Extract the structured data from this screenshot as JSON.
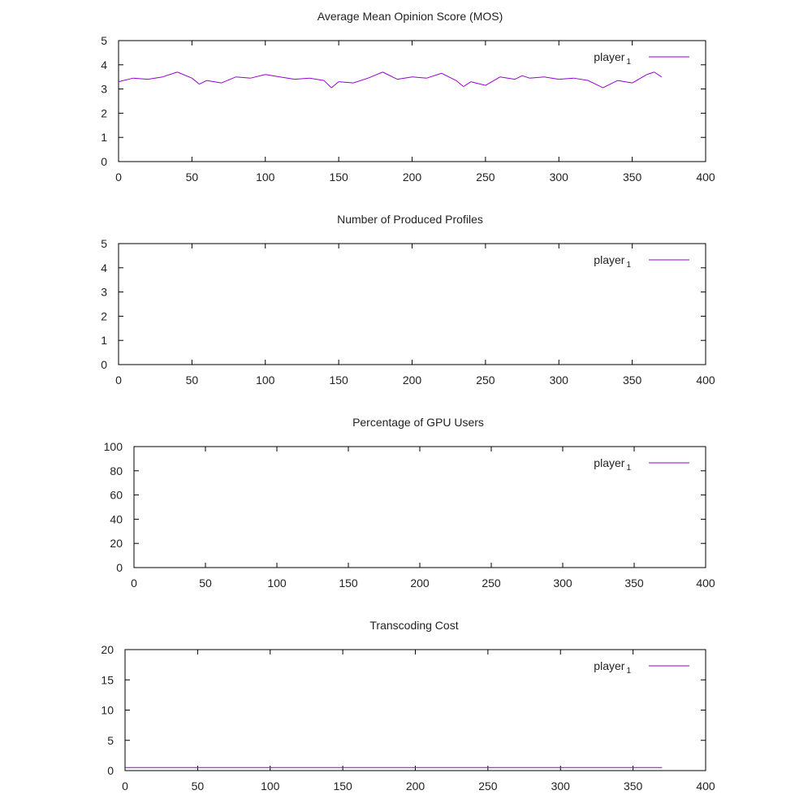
{
  "colors": {
    "series": "#9400d3",
    "axis": "#000000",
    "text": "#222222"
  },
  "chart_data": [
    {
      "type": "line",
      "title": "Average Mean Opinion Score (MOS)",
      "xlabel": "",
      "ylabel": "",
      "xlim": [
        0,
        400
      ],
      "ylim": [
        0,
        5
      ],
      "xticks": [
        0,
        50,
        100,
        150,
        200,
        250,
        300,
        350,
        400
      ],
      "yticks": [
        0,
        1,
        2,
        3,
        4,
        5
      ],
      "grid": false,
      "legend_position": "top-right",
      "series": [
        {
          "name": "player",
          "name_sub": "1",
          "x": [
            0,
            10,
            20,
            30,
            40,
            50,
            55,
            60,
            70,
            80,
            90,
            100,
            110,
            120,
            130,
            140,
            145,
            150,
            160,
            170,
            180,
            190,
            200,
            210,
            220,
            230,
            235,
            240,
            250,
            260,
            270,
            275,
            280,
            290,
            300,
            310,
            320,
            330,
            340,
            350,
            360,
            365,
            370
          ],
          "y": [
            3.3,
            3.45,
            3.4,
            3.5,
            3.7,
            3.45,
            3.2,
            3.35,
            3.25,
            3.5,
            3.45,
            3.6,
            3.5,
            3.4,
            3.45,
            3.35,
            3.05,
            3.3,
            3.25,
            3.45,
            3.7,
            3.4,
            3.5,
            3.45,
            3.65,
            3.35,
            3.1,
            3.3,
            3.15,
            3.5,
            3.4,
            3.55,
            3.45,
            3.5,
            3.4,
            3.45,
            3.35,
            3.05,
            3.35,
            3.25,
            3.6,
            3.7,
            3.5
          ]
        }
      ]
    },
    {
      "type": "line",
      "title": "Number of Produced Profiles",
      "xlabel": "",
      "ylabel": "",
      "xlim": [
        0,
        400
      ],
      "ylim": [
        0,
        5
      ],
      "xticks": [
        0,
        50,
        100,
        150,
        200,
        250,
        300,
        350,
        400
      ],
      "yticks": [
        0,
        1,
        2,
        3,
        4,
        5
      ],
      "grid": false,
      "legend_position": "top-right",
      "series": [
        {
          "name": "player",
          "name_sub": "1",
          "x": [],
          "y": []
        }
      ]
    },
    {
      "type": "line",
      "title": "Percentage of GPU Users",
      "xlabel": "",
      "ylabel": "",
      "xlim": [
        0,
        400
      ],
      "ylim": [
        0,
        100
      ],
      "xticks": [
        0,
        50,
        100,
        150,
        200,
        250,
        300,
        350,
        400
      ],
      "yticks": [
        0,
        20,
        40,
        60,
        80,
        100
      ],
      "grid": false,
      "legend_position": "top-right",
      "series": [
        {
          "name": "player",
          "name_sub": "1",
          "x": [],
          "y": []
        }
      ]
    },
    {
      "type": "line",
      "title": "Transcoding Cost",
      "xlabel": "",
      "ylabel": "",
      "xlim": [
        0,
        400
      ],
      "ylim": [
        0,
        20
      ],
      "xticks": [
        0,
        50,
        100,
        150,
        200,
        250,
        300,
        350,
        400
      ],
      "yticks": [
        0,
        5,
        10,
        15,
        20
      ],
      "grid": false,
      "legend_position": "top-right",
      "series": [
        {
          "name": "player",
          "name_sub": "1",
          "x": [
            0,
            370
          ],
          "y": [
            0.5,
            0.5
          ]
        }
      ]
    }
  ]
}
